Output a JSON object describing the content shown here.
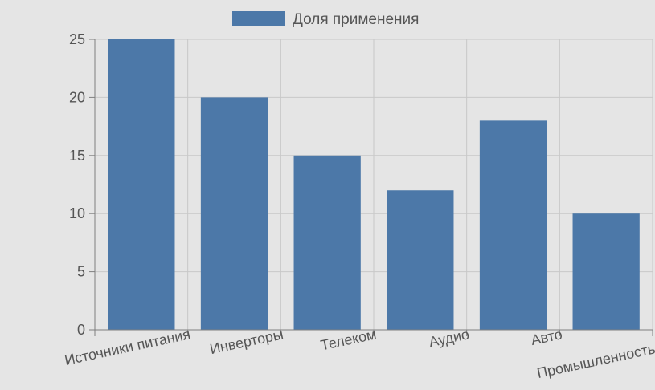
{
  "chart_data": {
    "type": "bar",
    "categories": [
      "Источники питания",
      "Инверторы",
      "Телеком",
      "Аудио",
      "Авто",
      "Промышленность"
    ],
    "series": [
      {
        "name": "Доля применения",
        "values": [
          25,
          20,
          15,
          12,
          18,
          10
        ]
      }
    ],
    "yticks": [
      0,
      5,
      10,
      15,
      20,
      25
    ],
    "ylim": [
      0,
      25
    ],
    "grid": true,
    "legend": "top-center",
    "colors": {
      "bar": "#4c78a8",
      "background": "#e5e5e5",
      "grid": "#c8c8c8",
      "axis": "#7f7f7f"
    }
  }
}
